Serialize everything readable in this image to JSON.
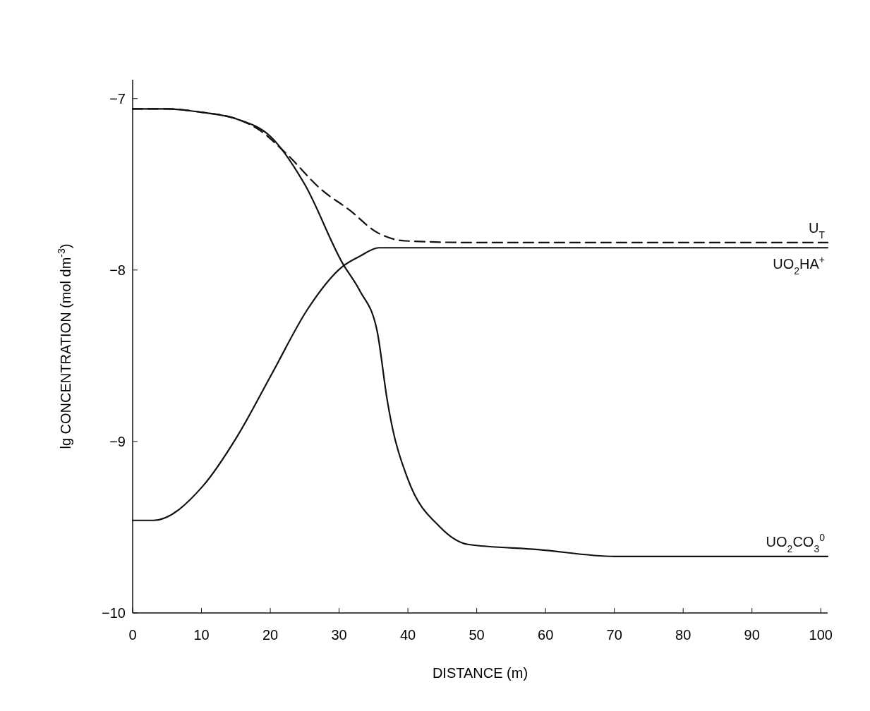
{
  "chart_data": {
    "type": "line",
    "xlabel": "DISTANCE (m)",
    "ylabel": "lg CONCENTRATION (mol dm$^{-3}$)",
    "xlim": [
      0,
      101
    ],
    "ylim": [
      -10,
      -6.89
    ],
    "xticks": [
      0,
      10,
      20,
      30,
      40,
      50,
      60,
      70,
      80,
      90,
      100
    ],
    "yticks": [
      -10,
      -9,
      -8,
      -7
    ],
    "marker": "none",
    "series": [
      {
        "name": "U$_{T}$",
        "color": "#111111",
        "line_style": "dashed",
        "x": [
          0,
          5,
          10,
          15.2,
          18.3,
          22.3,
          27.4,
          31.5,
          35.5,
          39.6,
          50,
          70,
          101
        ],
        "values": [
          -7.06,
          -7.06,
          -7.08,
          -7.12,
          -7.18,
          -7.32,
          -7.53,
          -7.65,
          -7.78,
          -7.83,
          -7.84,
          -7.84,
          -7.84
        ]
      },
      {
        "name": "UO$_{2}$HA$^{+}$",
        "color": "#111111",
        "line_style": "solid",
        "x": [
          0,
          3,
          10.2,
          15.2,
          20.3,
          25.4,
          30.5,
          33,
          35.8,
          40,
          60,
          101
        ],
        "values": [
          -9.46,
          -9.46,
          -9.26,
          -8.97,
          -8.6,
          -8.23,
          -7.98,
          -7.92,
          -7.87,
          -7.87,
          -7.87,
          -7.87
        ]
      },
      {
        "name": "UO$_{2}$CO$_{3}$$^{0}$",
        "color": "#111111",
        "line_style": "solid",
        "x": [
          0,
          5,
          10,
          15.2,
          20,
          25,
          30.5,
          33,
          35.5,
          37,
          37.8,
          40,
          44.7,
          48.7,
          58.9,
          70,
          101
        ],
        "values": [
          -7.06,
          -7.06,
          -7.08,
          -7.12,
          -7.22,
          -7.5,
          -7.96,
          -8.12,
          -8.35,
          -8.76,
          -8.93,
          -9.22,
          -9.5,
          -9.6,
          -9.63,
          -9.67,
          -9.67
        ]
      }
    ]
  }
}
